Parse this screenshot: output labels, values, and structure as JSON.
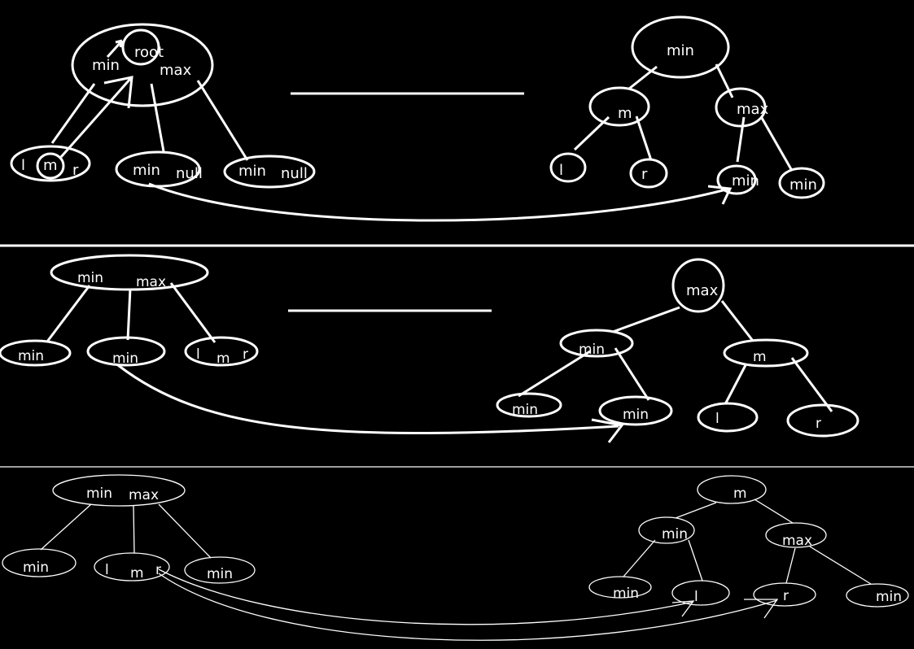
{
  "panel1": {
    "left": {
      "root": "root",
      "min": "min",
      "max": "max",
      "l": "l",
      "m": "m",
      "r": "r",
      "child2_min": "min",
      "child2_null": "null",
      "child3_min": "min",
      "child3_null": "null"
    },
    "right": {
      "root": "min",
      "m": "m",
      "max": "max",
      "l": "l",
      "r": "r",
      "leaf_min1": "min",
      "leaf_min2": "min"
    }
  },
  "panel2": {
    "left": {
      "min": "min",
      "max": "max",
      "child1": "min",
      "child2": "min",
      "l": "l",
      "m": "m",
      "r": "r"
    },
    "right": {
      "root": "max",
      "min": "min",
      "m": "m",
      "leaf_min1": "min",
      "leaf_min2": "min",
      "l": "l",
      "r": "r"
    }
  },
  "panel3": {
    "left": {
      "min": "min",
      "max": "max",
      "child1": "min",
      "l": "l",
      "m": "m",
      "r": "r",
      "child3": "min"
    },
    "right": {
      "root": "m",
      "min": "min",
      "max": "max",
      "leaf_min1": "min",
      "l": "l",
      "r": "r",
      "leaf_min2": "min"
    }
  }
}
